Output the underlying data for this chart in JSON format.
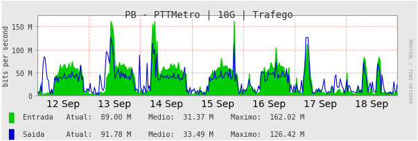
{
  "title": "PB - PTTMetro | 10G | Trafego",
  "ylabel": "bits per second",
  "bg_color": "#e8e8e8",
  "plot_bg_color": "#ffffff",
  "grid_color": "#ff9999",
  "axis_color": "#666666",
  "green_fill": "#00cc00",
  "blue_line": "#0000cc",
  "ylim": [
    0,
    175000000
  ],
  "yticks": [
    0,
    50000000,
    100000000,
    150000000
  ],
  "ytick_labels": [
    "0",
    "50 M",
    "100 M",
    "150 M"
  ],
  "xtick_labels": [
    "12 Sep",
    "13 Sep",
    "14 Sep",
    "15 Sep",
    "16 Sep",
    "17 Sep",
    "18 Sep"
  ],
  "legend_entrada": "Entrada",
  "legend_saida": "Saida",
  "atual_entrada": "89.00 M",
  "medio_entrada": "31.37 M",
  "maximo_entrada": "162.02 M",
  "atual_saida": "91.78 M",
  "medio_saida": "33.49 M",
  "maximo_saida": "126.42 M",
  "watermark": "RRDTOOL / TOBI OETIKER",
  "num_points": 336
}
